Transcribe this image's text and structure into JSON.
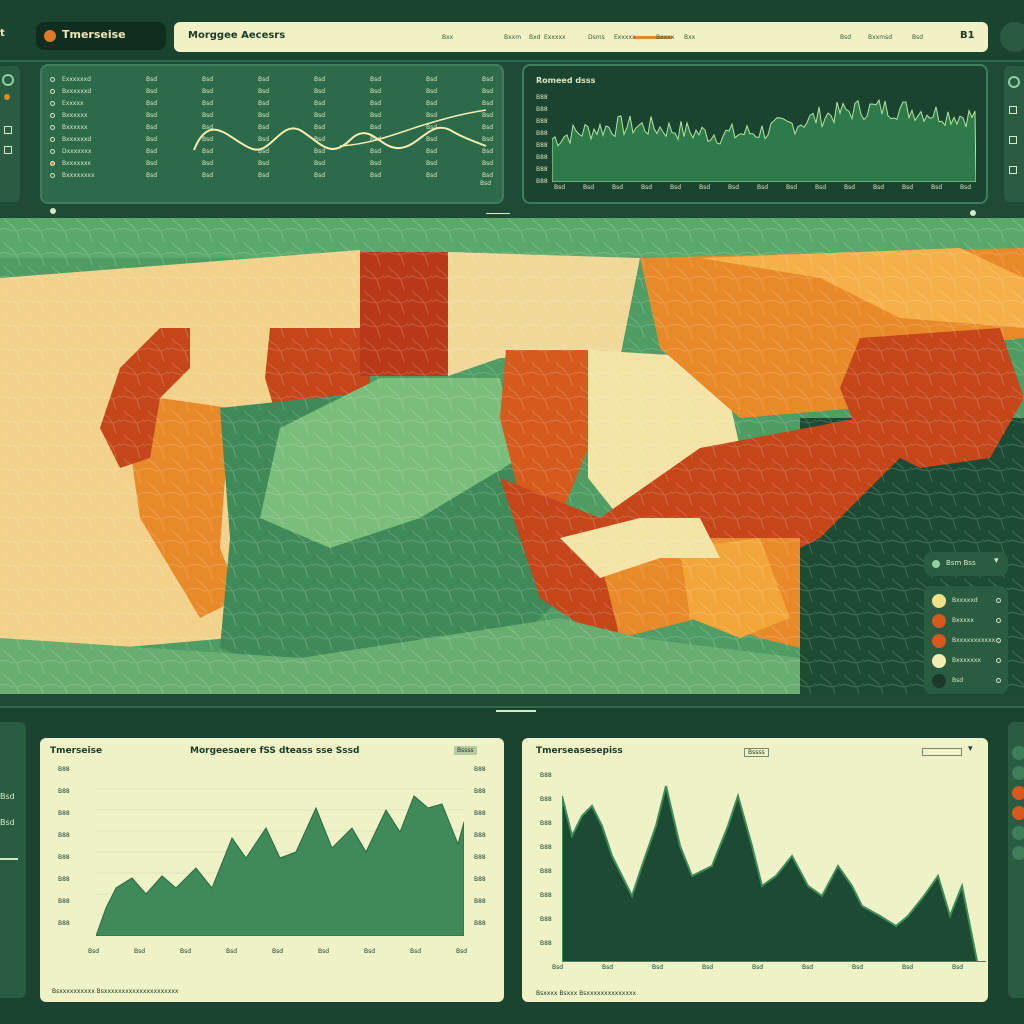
{
  "header": {
    "app_title": "Tmerseise",
    "search_label": "Morggee Aecesrs",
    "nav_items": [
      "Bxx",
      "Bxxm",
      "Bxd",
      "Exxxxx",
      "Dsms",
      "Exxxxx",
      "Bxxxx",
      "Bxx"
    ],
    "right_items": [
      "Bsd",
      "Bxxmsd",
      "Bsd",
      "B1"
    ],
    "edge_label": "t"
  },
  "top_left_panel": {
    "rows": [
      "Exxxxxxd",
      "Bxxxxxxd",
      "Exxxxx",
      "Bxxxxxx",
      "Bxxxxxx",
      "Bxxxxxxd",
      "Dxxxxxxx",
      "Bxxxxxxx",
      "Bxxxxxxxx"
    ],
    "columns": [
      "Bsd",
      "Bsd",
      "Bsd",
      "Bsd",
      "Bsd",
      "Bsd",
      "Bsd"
    ],
    "footer": "Bsd"
  },
  "top_right_panel": {
    "title": "Romeed dsss",
    "y_ticks": [
      "B88",
      "B88",
      "B88",
      "B88",
      "B88",
      "B88",
      "B88",
      "B88"
    ],
    "x_ticks": [
      "Bsd",
      "Bsd",
      "Bsd",
      "Bsd",
      "Bsd",
      "Bsd",
      "Bsd",
      "Bsd",
      "Bsd",
      "Bsd",
      "Bsd",
      "Bsd",
      "Bsd",
      "Bsd",
      "Bsd"
    ]
  },
  "legend": {
    "head_label": "Bsm Bss",
    "items": [
      {
        "label": "Bxxxxxd",
        "color": "#efe08a"
      },
      {
        "label": "Bxxxxx",
        "color": "#d55a1e"
      },
      {
        "label": "Bxxxxxxxxxxx",
        "color": "#d55a1e"
      },
      {
        "label": "Bxxxxxxx",
        "color": "#f2eeb0"
      },
      {
        "label": "Bsd",
        "color": "#1c3a2a"
      }
    ]
  },
  "bottom_left_panel": {
    "title": "Tmerseise",
    "subtitle": "Morgeesaere fSS dteass sse Sssd",
    "badge": "Bssss",
    "y_ticks": [
      "B88",
      "B88",
      "B88",
      "B88",
      "B88",
      "B88",
      "B88",
      "B88"
    ],
    "right_ticks": [
      "B88",
      "B88",
      "B88",
      "B88",
      "B88",
      "B88",
      "B88",
      "B88"
    ],
    "x_ticks": [
      "Bsd",
      "Bsd",
      "Bsd",
      "Bsd",
      "Bsd",
      "Bsd",
      "Bsd",
      "Bsd",
      "Bsd"
    ],
    "footer": "Bsxxxxxxxxxx Bsxxxxxxxxxxxxxxxxxxxxx"
  },
  "bottom_right_panel": {
    "title": "Tmerseasesepiss",
    "badge": "Bssss",
    "y_ticks": [
      "B88",
      "B88",
      "B88",
      "B88",
      "B88",
      "B88",
      "B88",
      "B88"
    ],
    "x_ticks": [
      "Bsd",
      "Bsd",
      "Bsd",
      "Bsd",
      "Bsd",
      "Bsd",
      "Bsd",
      "Bsd",
      "Bsd"
    ],
    "footer": "Bsxxxx Bsxxx Bsxxxxxxxxxxxxxx"
  },
  "left_bottom_side": {
    "labels": [
      "Bsd",
      "Bsd"
    ]
  },
  "colors": {
    "dark_green": "#1a4330",
    "mid_green": "#2d6a4a",
    "cream": "#eef2c6",
    "orange": "#e8892a",
    "red": "#c4461a"
  }
}
